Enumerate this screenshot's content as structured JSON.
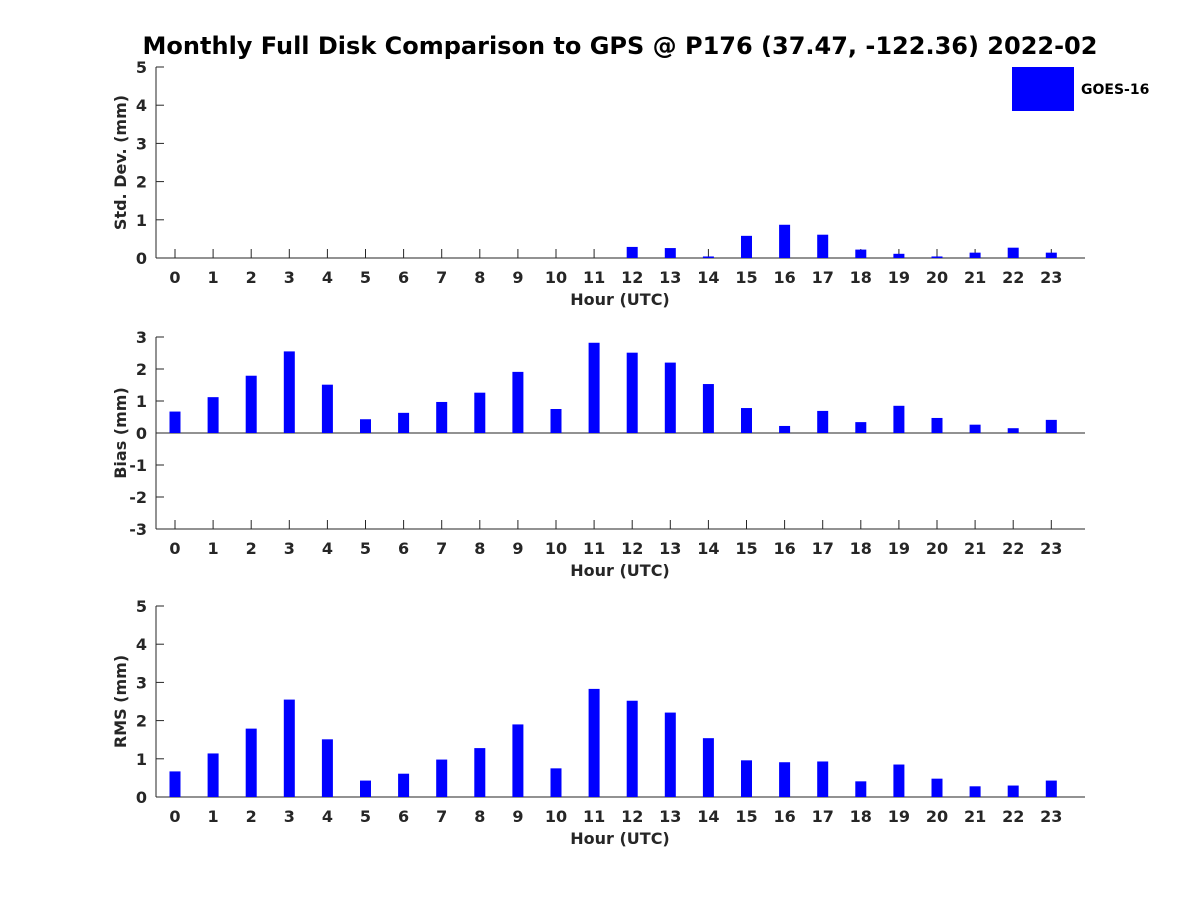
{
  "title": "Monthly Full Disk Comparison to GPS @ P176 (37.47, -122.36) 2022-02",
  "legend": {
    "label": "GOES-16",
    "color": "#0000ff"
  },
  "chart_data": [
    {
      "type": "bar",
      "xlabel": "Hour (UTC)",
      "ylabel": "Std. Dev. (mm)",
      "ylim": [
        0,
        5
      ],
      "yticks": [
        "0",
        "1",
        "2",
        "3",
        "4",
        "5"
      ],
      "categories": [
        "0",
        "1",
        "2",
        "3",
        "4",
        "5",
        "6",
        "7",
        "8",
        "9",
        "10",
        "11",
        "12",
        "13",
        "14",
        "15",
        "16",
        "17",
        "18",
        "19",
        "20",
        "21",
        "22",
        "23"
      ],
      "series": [
        {
          "name": "GOES-16",
          "color": "#0000ff",
          "values": [
            0,
            0,
            0,
            0,
            0,
            0,
            0,
            0,
            0,
            0,
            0,
            0,
            0.29,
            0.26,
            0.04,
            0.58,
            0.87,
            0.61,
            0.22,
            0.11,
            0.04,
            0.14,
            0.27,
            0.14
          ]
        }
      ],
      "legend": "top-right"
    },
    {
      "type": "bar",
      "xlabel": "Hour (UTC)",
      "ylabel": "Bias (mm)",
      "ylim": [
        -3,
        3
      ],
      "yticks": [
        "-3",
        "-2",
        "-1",
        "0",
        "1",
        "2",
        "3"
      ],
      "categories": [
        "0",
        "1",
        "2",
        "3",
        "4",
        "5",
        "6",
        "7",
        "8",
        "9",
        "10",
        "11",
        "12",
        "13",
        "14",
        "15",
        "16",
        "17",
        "18",
        "19",
        "20",
        "21",
        "22",
        "23"
      ],
      "series": [
        {
          "name": "GOES-16",
          "color": "#0000ff",
          "values": [
            0.67,
            1.12,
            1.79,
            2.55,
            1.51,
            0.43,
            0.63,
            0.97,
            1.26,
            1.91,
            0.75,
            2.82,
            2.51,
            2.2,
            1.53,
            0.78,
            0.22,
            0.69,
            0.34,
            0.85,
            0.47,
            0.26,
            0.15,
            0.41
          ]
        }
      ]
    },
    {
      "type": "bar",
      "xlabel": "Hour (UTC)",
      "ylabel": "RMS (mm)",
      "ylim": [
        0,
        5
      ],
      "yticks": [
        "0",
        "1",
        "2",
        "3",
        "4",
        "5"
      ],
      "categories": [
        "0",
        "1",
        "2",
        "3",
        "4",
        "5",
        "6",
        "7",
        "8",
        "9",
        "10",
        "11",
        "12",
        "13",
        "14",
        "15",
        "16",
        "17",
        "18",
        "19",
        "20",
        "21",
        "22",
        "23"
      ],
      "series": [
        {
          "name": "GOES-16",
          "color": "#0000ff",
          "values": [
            0.67,
            1.14,
            1.79,
            2.55,
            1.51,
            0.43,
            0.61,
            0.98,
            1.28,
            1.9,
            0.75,
            2.83,
            2.52,
            2.21,
            1.54,
            0.96,
            0.91,
            0.93,
            0.41,
            0.85,
            0.48,
            0.28,
            0.3,
            0.43
          ]
        }
      ]
    }
  ]
}
